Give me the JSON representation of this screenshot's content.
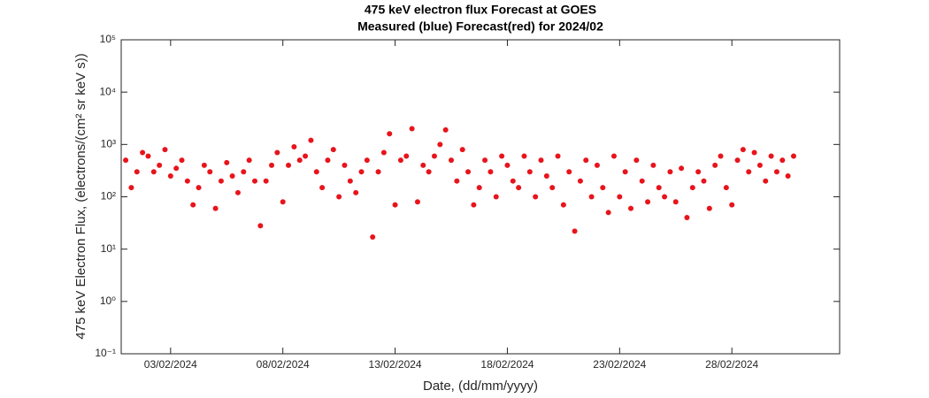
{
  "chart_data": {
    "type": "scatter",
    "title": "475 keV electron flux Forecast at GOES",
    "subtitle": "Measured (blue) Forecast(red) for 2024/02",
    "x_label": "Date, (dd/mm/yyyy)",
    "y_label": "475 keV Electron Flux, (electrons/(cm² sr keV s))",
    "y_scale": "log",
    "xlim": [
      0.8,
      32.8
    ],
    "ylim": [
      0.1,
      100000
    ],
    "xticks": [
      {
        "value": 3,
        "label": "03/02/2024"
      },
      {
        "value": 8,
        "label": "08/02/2024"
      },
      {
        "value": 13,
        "label": "13/02/2024"
      },
      {
        "value": 18,
        "label": "18/02/2024"
      },
      {
        "value": 23,
        "label": "23/02/2024"
      },
      {
        "value": 28,
        "label": "28/02/2024"
      }
    ],
    "yticks": [
      {
        "value": 0.1,
        "label": "10⁻¹"
      },
      {
        "value": 1,
        "label": "10⁰"
      },
      {
        "value": 10,
        "label": "10¹"
      },
      {
        "value": 100,
        "label": "10²"
      },
      {
        "value": 1000,
        "label": "10³"
      },
      {
        "value": 10000,
        "label": "10⁴"
      },
      {
        "value": 100000,
        "label": "10⁵"
      }
    ],
    "series": [
      {
        "name": "Forecast",
        "color": "#e8141b",
        "x": [
          1.0,
          1.25,
          1.5,
          1.75,
          2.0,
          2.25,
          2.5,
          2.75,
          3.0,
          3.25,
          3.5,
          3.75,
          4.0,
          4.25,
          4.5,
          4.75,
          5.0,
          5.25,
          5.5,
          5.75,
          6.0,
          6.25,
          6.5,
          6.75,
          7.0,
          7.25,
          7.5,
          7.75,
          8.0,
          8.25,
          8.5,
          8.75,
          9.0,
          9.25,
          9.5,
          9.75,
          10.0,
          10.25,
          10.5,
          10.75,
          11.0,
          11.25,
          11.5,
          11.75,
          12.0,
          12.25,
          12.5,
          12.75,
          13.0,
          13.25,
          13.5,
          13.75,
          14.0,
          14.25,
          14.5,
          14.75,
          15.0,
          15.25,
          15.5,
          15.75,
          16.0,
          16.25,
          16.5,
          16.75,
          17.0,
          17.25,
          17.5,
          17.75,
          18.0,
          18.25,
          18.5,
          18.75,
          19.0,
          19.25,
          19.5,
          19.75,
          20.0,
          20.25,
          20.5,
          20.75,
          21.0,
          21.25,
          21.5,
          21.75,
          22.0,
          22.25,
          22.5,
          22.75,
          23.0,
          23.25,
          23.5,
          23.75,
          24.0,
          24.25,
          24.5,
          24.75,
          25.0,
          25.25,
          25.5,
          25.75,
          26.0,
          26.25,
          26.5,
          26.75,
          27.0,
          27.25,
          27.5,
          27.75,
          28.0,
          28.25,
          28.5,
          28.75,
          29.0,
          29.25,
          29.5,
          29.75,
          30.0,
          30.25,
          30.5,
          30.75
        ],
        "values": [
          500,
          150,
          300,
          700,
          600,
          300,
          400,
          800,
          250,
          350,
          500,
          200,
          70,
          150,
          400,
          300,
          60,
          200,
          450,
          250,
          120,
          300,
          500,
          200,
          28,
          200,
          400,
          700,
          80,
          400,
          900,
          500,
          600,
          1200,
          300,
          150,
          500,
          800,
          100,
          400,
          200,
          120,
          300,
          500,
          17,
          300,
          700,
          1600,
          70,
          500,
          600,
          2000,
          80,
          400,
          300,
          600,
          1000,
          1900,
          500,
          200,
          800,
          300,
          70,
          150,
          500,
          300,
          100,
          600,
          400,
          200,
          150,
          600,
          300,
          100,
          500,
          250,
          150,
          600,
          70,
          300,
          22,
          200,
          500,
          100,
          400,
          150,
          50,
          600,
          100,
          300,
          60,
          500,
          200,
          80,
          400,
          150,
          100,
          300,
          80,
          350,
          40,
          150,
          300,
          200,
          60,
          400,
          600,
          150,
          70,
          500,
          800,
          300,
          700,
          400,
          200,
          600,
          300,
          500,
          250,
          600
        ]
      }
    ]
  }
}
